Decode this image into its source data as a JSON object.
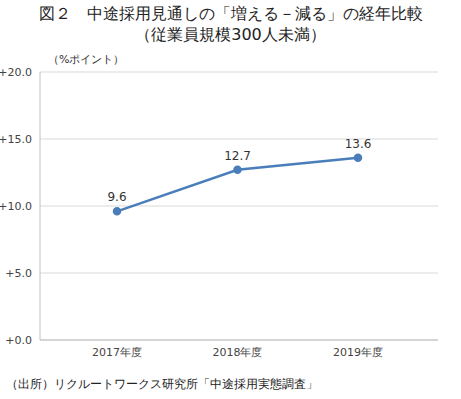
{
  "chart_data": {
    "type": "line",
    "title": "図２　中途採用見通しの「増える－減る」の経年比較",
    "subtitle": "（従業員規模300人未満）",
    "y_label": "（%ポイント）",
    "source": "（出所）リクルートワークス研究所「中途採用実態調査」",
    "categories": [
      "2017年度",
      "2018年度",
      "2019年度"
    ],
    "values": [
      9.6,
      12.7,
      13.6
    ],
    "color": "#4a7ebb",
    "marker": "circle",
    "ylim": [
      0,
      20
    ],
    "yticks": [
      {
        "value": 0,
        "label": "+0.0"
      },
      {
        "value": 5,
        "label": "+5.0"
      },
      {
        "value": 10,
        "label": "+10.0"
      },
      {
        "value": 15,
        "label": "+15.0"
      },
      {
        "value": 20,
        "label": "+20.0"
      }
    ],
    "grid": true,
    "data_labels": true
  }
}
